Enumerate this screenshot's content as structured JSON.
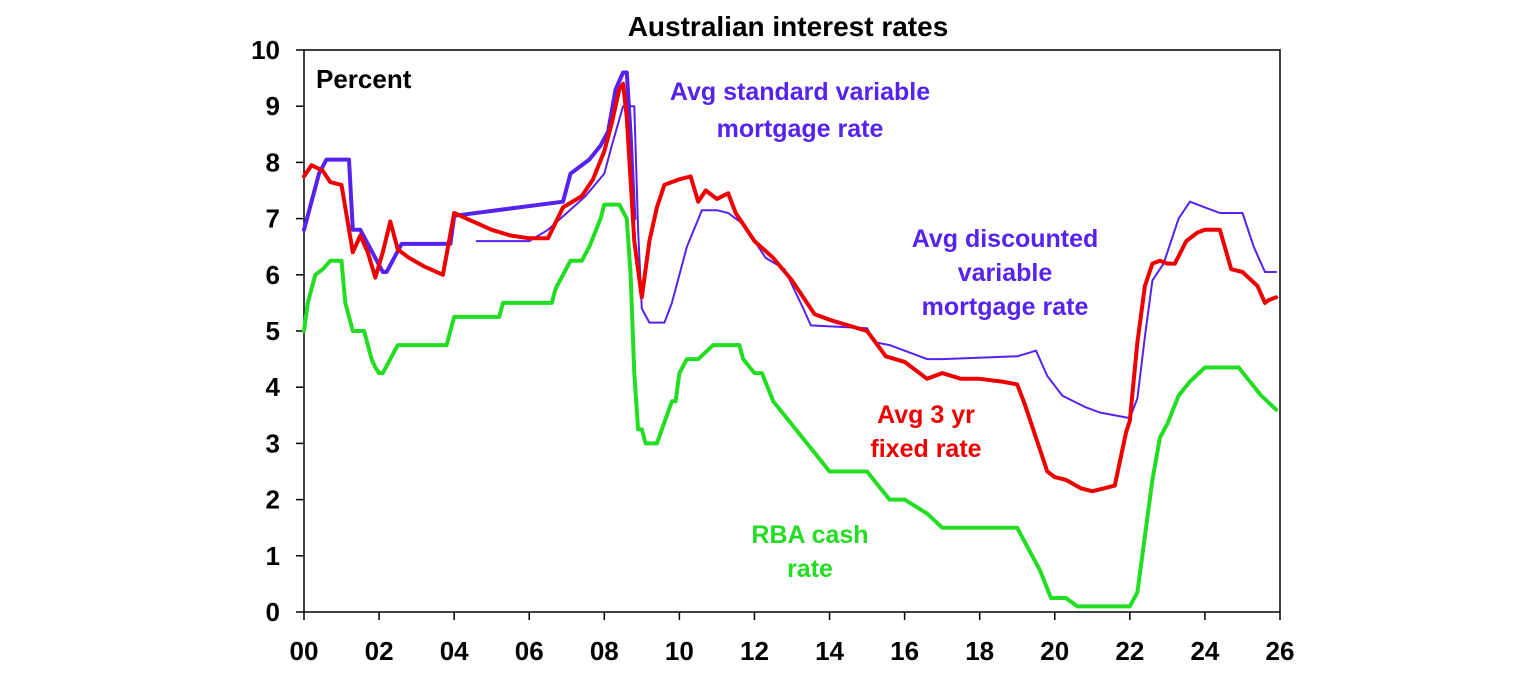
{
  "chart_data": {
    "type": "line",
    "title": "Australian interest rates",
    "unit_label": "Percent",
    "xlabel": "",
    "ylabel": "",
    "xlim": [
      0,
      26
    ],
    "ylim": [
      0,
      10
    ],
    "grid": false,
    "x_tick_labels": [
      "00",
      "02",
      "04",
      "06",
      "08",
      "10",
      "12",
      "14",
      "16",
      "18",
      "20",
      "22",
      "24",
      "26"
    ],
    "x_tick_values": [
      0,
      2,
      4,
      6,
      8,
      10,
      12,
      14,
      16,
      18,
      20,
      22,
      24,
      26
    ],
    "y_tick_labels": [
      "0",
      "1",
      "2",
      "3",
      "4",
      "5",
      "6",
      "7",
      "8",
      "9",
      "10"
    ],
    "y_tick_values": [
      0,
      1,
      2,
      3,
      4,
      5,
      6,
      7,
      8,
      9,
      10
    ],
    "annotations": [
      {
        "lines": [
          "Avg standard variable",
          "mortgage rate"
        ],
        "color": "#5522ee"
      },
      {
        "lines": [
          "Avg discounted",
          "variable",
          "mortgage rate"
        ],
        "color": "#5522ee"
      },
      {
        "lines": [
          "Avg 3 yr",
          "fixed rate"
        ],
        "color": "#ee0000"
      },
      {
        "lines": [
          "RBA cash",
          "rate"
        ],
        "color": "#22dd22"
      }
    ],
    "series": [
      {
        "color": "#5522ee",
        "x": [
          0.0,
          0.2,
          0.4,
          0.6,
          0.8,
          1.2,
          1.3,
          1.5,
          1.9,
          2.1,
          2.2,
          2.4,
          2.6,
          3.9,
          4.0,
          6.9,
          7.1,
          7.6,
          7.9,
          8.1,
          8.3,
          8.5,
          8.6,
          8.7,
          8.8
        ],
        "y": [
          6.8,
          7.3,
          7.8,
          8.05,
          8.05,
          8.05,
          6.8,
          6.8,
          6.3,
          6.05,
          6.05,
          6.3,
          6.55,
          6.55,
          7.05,
          7.3,
          7.8,
          8.05,
          8.3,
          8.55,
          9.3,
          9.6,
          9.6,
          8.5,
          7.0
        ]
      },
      {
        "color": "#5522ee",
        "x": [
          4.6,
          5.1,
          6.0,
          6.5,
          7.0,
          7.5,
          8.0,
          8.2,
          8.5,
          8.8,
          8.9,
          9.0,
          9.2,
          9.6,
          9.8,
          10.2,
          10.6,
          11.0,
          11.3,
          11.7,
          12.0,
          12.3,
          12.8,
          13.3,
          13.5,
          15.0,
          15.2,
          15.6,
          16.6,
          17.0,
          19.0,
          19.5,
          19.8,
          20.2,
          20.8,
          21.2,
          22.0,
          22.2,
          22.4,
          22.6,
          22.9,
          23.3,
          23.6,
          24.0,
          24.4,
          25.0,
          25.3,
          25.6,
          25.9
        ],
        "y": [
          6.6,
          6.6,
          6.6,
          6.8,
          7.1,
          7.4,
          7.8,
          8.3,
          9.0,
          9.0,
          6.8,
          5.4,
          5.15,
          5.15,
          5.5,
          6.5,
          7.15,
          7.15,
          7.1,
          6.9,
          6.6,
          6.3,
          6.1,
          5.4,
          5.1,
          5.05,
          4.8,
          4.75,
          4.5,
          4.5,
          4.55,
          4.65,
          4.2,
          3.85,
          3.65,
          3.55,
          3.45,
          3.8,
          4.9,
          5.9,
          6.2,
          7.0,
          7.3,
          7.2,
          7.1,
          7.1,
          6.5,
          6.05,
          6.05
        ]
      },
      {
        "color": "#ee0000",
        "x": [
          0.0,
          0.2,
          0.5,
          0.7,
          1.0,
          1.3,
          1.5,
          1.7,
          1.9,
          2.1,
          2.3,
          2.5,
          2.8,
          3.2,
          3.7,
          4.0,
          4.5,
          5.0,
          5.5,
          6.0,
          6.5,
          6.9,
          7.4,
          7.7,
          8.0,
          8.2,
          8.4,
          8.5,
          8.6,
          8.8,
          9.0,
          9.2,
          9.4,
          9.6,
          10.0,
          10.3,
          10.5,
          10.7,
          11.0,
          11.3,
          11.5,
          12.0,
          12.5,
          13.0,
          13.3,
          13.6,
          14.0,
          14.5,
          15.0,
          15.5,
          16.0,
          16.6,
          17.0,
          17.5,
          18.0,
          18.6,
          19.0,
          19.2,
          19.5,
          19.8,
          20.0,
          20.3,
          20.7,
          21.0,
          21.3,
          21.6,
          21.9,
          22.0,
          22.2,
          22.4,
          22.6,
          22.8,
          23.0,
          23.2,
          23.5,
          23.8,
          24.0,
          24.4,
          24.7,
          25.0,
          25.4,
          25.6,
          25.7,
          25.9
        ],
        "y": [
          7.75,
          7.95,
          7.85,
          7.65,
          7.6,
          6.4,
          6.7,
          6.4,
          5.95,
          6.4,
          6.95,
          6.45,
          6.3,
          6.15,
          6.0,
          7.1,
          6.95,
          6.8,
          6.7,
          6.65,
          6.65,
          7.2,
          7.4,
          7.7,
          8.2,
          8.7,
          9.3,
          9.4,
          8.8,
          6.6,
          5.6,
          6.6,
          7.2,
          7.6,
          7.7,
          7.75,
          7.3,
          7.5,
          7.35,
          7.45,
          7.1,
          6.6,
          6.3,
          5.9,
          5.6,
          5.3,
          5.2,
          5.1,
          5.0,
          4.55,
          4.45,
          4.15,
          4.25,
          4.15,
          4.15,
          4.1,
          4.05,
          3.7,
          3.1,
          2.5,
          2.4,
          2.35,
          2.2,
          2.15,
          2.2,
          2.25,
          3.2,
          3.4,
          4.8,
          5.8,
          6.2,
          6.25,
          6.2,
          6.2,
          6.6,
          6.75,
          6.8,
          6.8,
          6.1,
          6.05,
          5.8,
          5.5,
          5.55,
          5.6
        ]
      },
      {
        "color": "#22dd22",
        "x": [
          0.0,
          0.1,
          0.3,
          0.5,
          0.7,
          1.0,
          1.1,
          1.3,
          1.6,
          1.8,
          1.9,
          2.0,
          2.1,
          2.3,
          2.5,
          3.8,
          3.9,
          4.0,
          5.2,
          5.3,
          5.5,
          6.6,
          6.7,
          6.9,
          7.1,
          7.4,
          7.6,
          7.9,
          8.0,
          8.2,
          8.4,
          8.6,
          8.7,
          8.8,
          8.9,
          9.0,
          9.1,
          9.2,
          9.4,
          9.8,
          9.9,
          10.0,
          10.2,
          10.5,
          10.9,
          11.0,
          11.2,
          11.6,
          11.7,
          12.0,
          12.2,
          12.5,
          12.8,
          13.1,
          13.4,
          13.7,
          14.0,
          14.5,
          15.0,
          15.3,
          15.6,
          16.0,
          16.6,
          17.0,
          18.0,
          18.5,
          19.0,
          19.4,
          19.6,
          19.9,
          20.2,
          20.3,
          20.6,
          21.2,
          21.5,
          21.9,
          22.0,
          22.2,
          22.4,
          22.6,
          22.8,
          23.0,
          23.3,
          23.6,
          24.0,
          24.6,
          24.9,
          25.2,
          25.5,
          25.9
        ],
        "y": [
          5.0,
          5.5,
          6.0,
          6.1,
          6.25,
          6.25,
          5.5,
          5.0,
          5.0,
          4.5,
          4.35,
          4.25,
          4.25,
          4.5,
          4.75,
          4.75,
          5.0,
          5.25,
          5.25,
          5.5,
          5.5,
          5.5,
          5.75,
          6.0,
          6.25,
          6.25,
          6.5,
          7.0,
          7.25,
          7.25,
          7.25,
          7.0,
          6.0,
          4.25,
          3.25,
          3.25,
          3.0,
          3.0,
          3.0,
          3.75,
          3.75,
          4.25,
          4.5,
          4.5,
          4.75,
          4.75,
          4.75,
          4.75,
          4.5,
          4.25,
          4.25,
          3.75,
          3.5,
          3.25,
          3.0,
          2.75,
          2.5,
          2.5,
          2.5,
          2.25,
          2.0,
          2.0,
          1.75,
          1.5,
          1.5,
          1.5,
          1.5,
          1.0,
          0.75,
          0.25,
          0.25,
          0.25,
          0.1,
          0.1,
          0.1,
          0.1,
          0.1,
          0.35,
          1.35,
          2.35,
          3.1,
          3.35,
          3.85,
          4.1,
          4.35,
          4.35,
          4.35,
          4.1,
          3.85,
          3.6
        ]
      }
    ]
  }
}
